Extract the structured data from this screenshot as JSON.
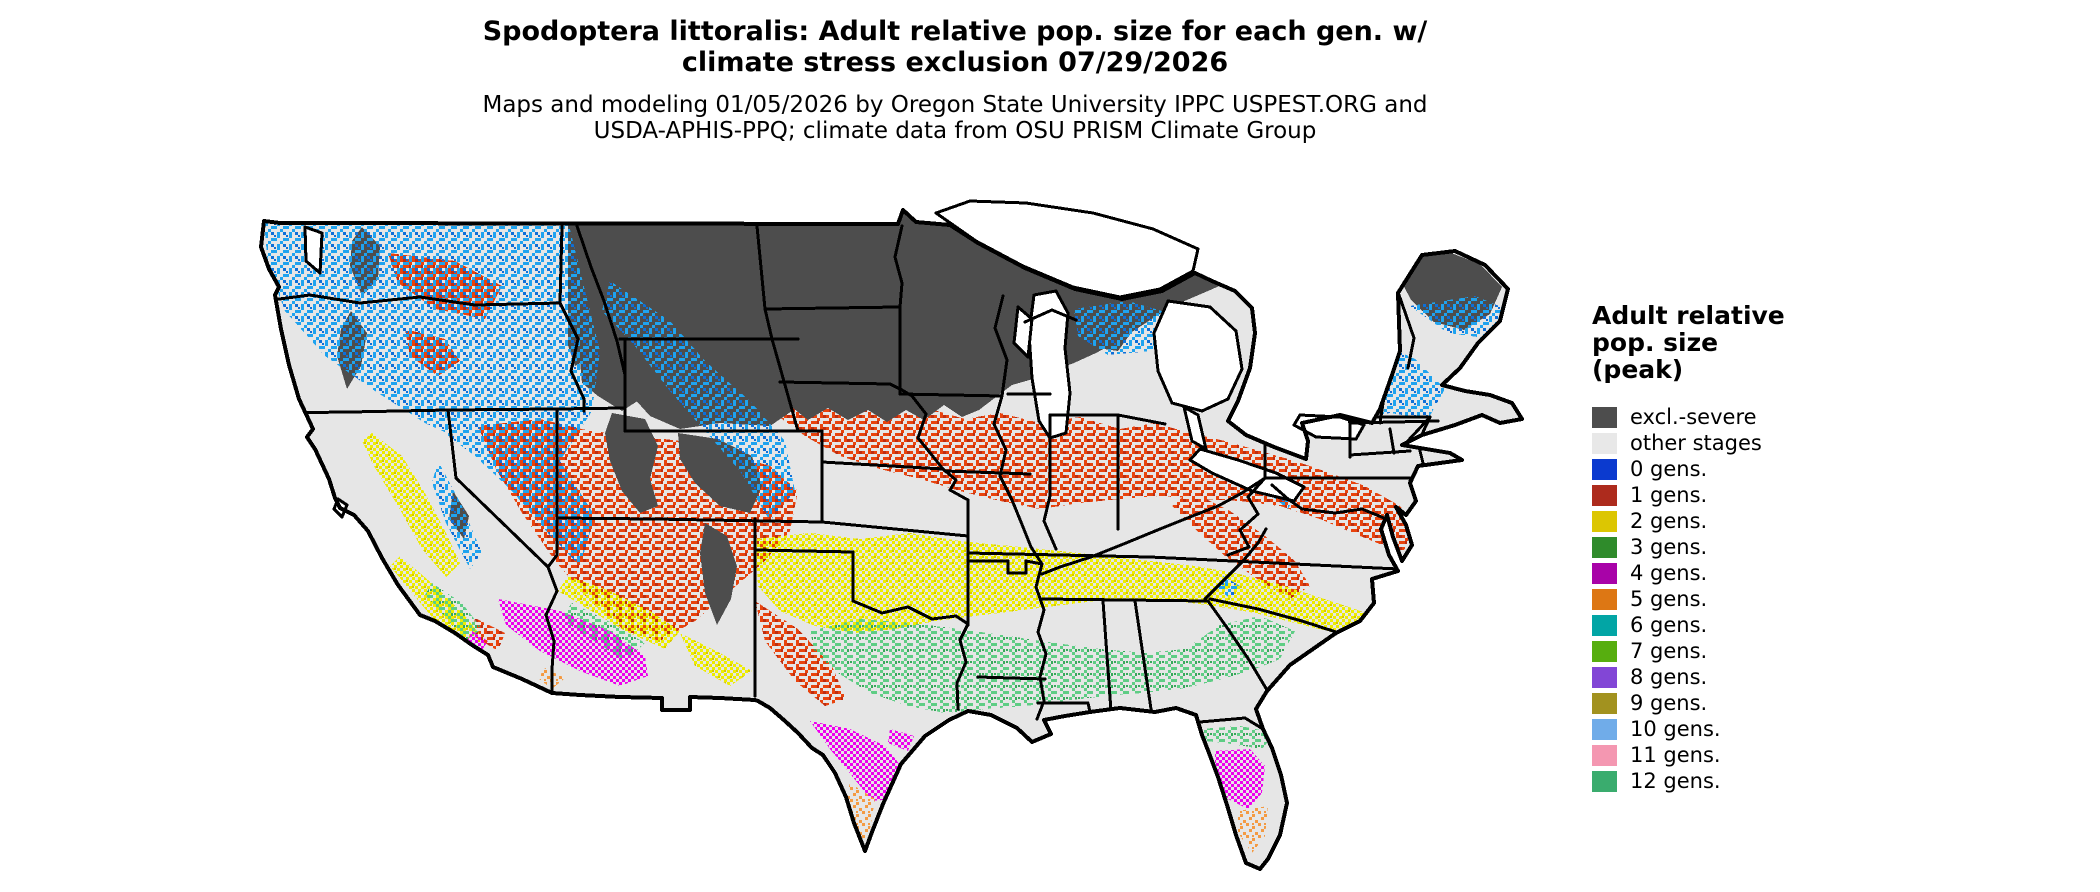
{
  "title": {
    "line1": "Spodoptera littoralis: Adult relative pop. size for each gen. w/",
    "line2": "climate stress exclusion 07/29/2026"
  },
  "subtitle": {
    "line1": "Maps and modeling 01/05/2026 by Oregon State University IPPC USPEST.ORG and",
    "line2": "USDA-APHIS-PPQ; climate data from OSU PRISM Climate Group"
  },
  "legend": {
    "title_lines": [
      "Adult relative",
      "pop. size",
      "(peak)"
    ],
    "items": [
      {
        "label": "excl.-severe",
        "color": "#4D4D4D"
      },
      {
        "label": "other stages",
        "color": "#E8E8E8"
      },
      {
        "label": "0 gens.",
        "color": "#0B3ACF"
      },
      {
        "label": "1 gens.",
        "color": "#AD2B1D"
      },
      {
        "label": "2 gens.",
        "color": "#DCC602"
      },
      {
        "label": "3 gens.",
        "color": "#2F8B2B"
      },
      {
        "label": "4 gens.",
        "color": "#A803A8"
      },
      {
        "label": "5 gens.",
        "color": "#DD7714"
      },
      {
        "label": "6 gens.",
        "color": "#02A5A5"
      },
      {
        "label": "7 gens.",
        "color": "#57AE0F"
      },
      {
        "label": "8 gens.",
        "color": "#8246D6"
      },
      {
        "label": "9 gens.",
        "color": "#A2921F"
      },
      {
        "label": "10 gens.",
        "color": "#70ACE9"
      },
      {
        "label": "11 gens.",
        "color": "#F497B1"
      },
      {
        "label": "12 gens.",
        "color": "#3AAC6E"
      }
    ]
  },
  "map": {
    "palette": {
      "land": "#E6E6E6",
      "excluded": "#4D4D4D",
      "water": "#FFFFFF",
      "border": "#000000",
      "speckle_blue": "#1FA3EF",
      "speckle_blue_dark": "#0E6FD8",
      "speckle_red": "#E8430D",
      "speckle_red_dark": "#BE2D10",
      "speckle_yellow": "#EDED00",
      "speckle_yellow_dark": "#D8C800",
      "speckle_green": "#5ECD84",
      "speckle_green_dark": "#37A95B",
      "speckle_magenta": "#EE00EE",
      "speckle_orange": "#F49A42"
    }
  }
}
